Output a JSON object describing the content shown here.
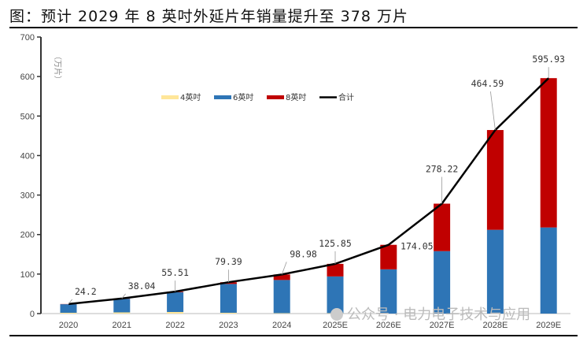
{
  "title": "图：预计 2029 年 8 英吋外延片年销量提升至 378 万片",
  "watermark": "公众号 · 电力电子技术与应用",
  "chart_data": {
    "type": "bar",
    "stacked": true,
    "ylabel": "（万片）",
    "ylim": [
      0,
      700
    ],
    "yticks": [
      0,
      100,
      200,
      300,
      400,
      500,
      600,
      700
    ],
    "categories": [
      "2020",
      "2021",
      "2022",
      "2023",
      "2024",
      "2025E",
      "2026E",
      "2027E",
      "2028E",
      "2029E"
    ],
    "series": [
      {
        "name": "4英吋",
        "color": "#FFE699",
        "values": [
          2,
          3,
          4,
          2,
          1,
          1,
          0,
          0,
          0,
          0
        ]
      },
      {
        "name": "6英吋",
        "color": "#2E75B6",
        "values": [
          21.7,
          34.5,
          50,
          73,
          84,
          93,
          112,
          158,
          212,
          218
        ]
      },
      {
        "name": "8英吋",
        "color": "#C00000",
        "values": [
          0.5,
          0.54,
          1.51,
          4.39,
          13.98,
          31.85,
          62.05,
          120.22,
          252.59,
          377.93
        ]
      }
    ],
    "line": {
      "name": "合计",
      "color": "#000000",
      "values": [
        24.2,
        38.04,
        55.51,
        79.39,
        98.98,
        125.85,
        174.05,
        278.22,
        464.59,
        595.93
      ]
    },
    "data_labels": [
      "24.2",
      "38.04",
      "55.51",
      "79.39",
      "98.98",
      "125.85",
      "174.05",
      "278.22",
      "464.59",
      "595.93"
    ],
    "legend": "top-center",
    "grid": false
  }
}
